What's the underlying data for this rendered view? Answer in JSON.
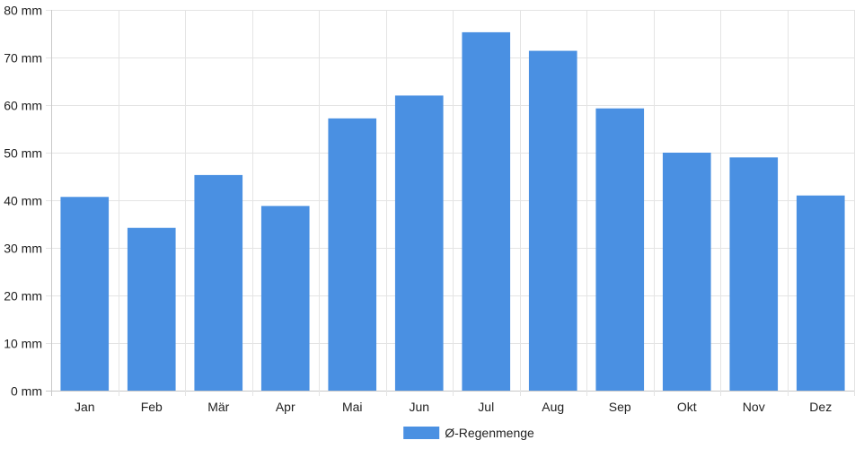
{
  "chart_data": {
    "type": "bar",
    "categories": [
      "Jan",
      "Feb",
      "Mär",
      "Apr",
      "Mai",
      "Jun",
      "Jul",
      "Aug",
      "Sep",
      "Okt",
      "Nov",
      "Dez"
    ],
    "series": [
      {
        "name": "Ø-Regenmenge",
        "values": [
          40.7,
          34.2,
          45.3,
          38.8,
          57.2,
          62.0,
          75.3,
          71.4,
          59.3,
          50.0,
          49.0,
          41.0
        ],
        "color": "#4a90e2"
      }
    ],
    "yticks": [
      "0 mm",
      "10 mm",
      "20 mm",
      "30 mm",
      "40 mm",
      "50 mm",
      "60 mm",
      "70 mm",
      "80 mm"
    ],
    "ylim": [
      0,
      80
    ],
    "grid": true,
    "legend_position": "bottom"
  }
}
